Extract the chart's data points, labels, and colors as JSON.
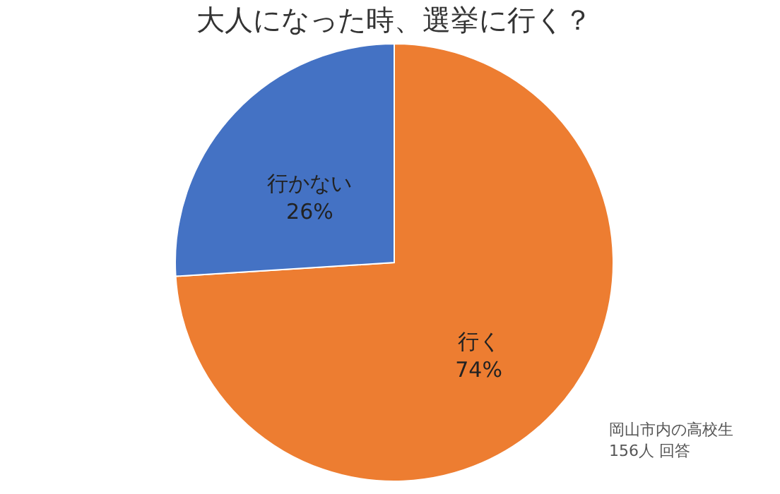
{
  "chart_data": {
    "type": "pie",
    "title": "大人になった時、選挙に行く？",
    "categories": [
      "行く",
      "行かない"
    ],
    "values": [
      74,
      26
    ],
    "value_labels": [
      "74%",
      "26%"
    ],
    "colors": [
      "#ed7d31",
      "#4472c4"
    ],
    "annotations": [
      "岡山市内の高校生",
      "156人 回答"
    ]
  }
}
